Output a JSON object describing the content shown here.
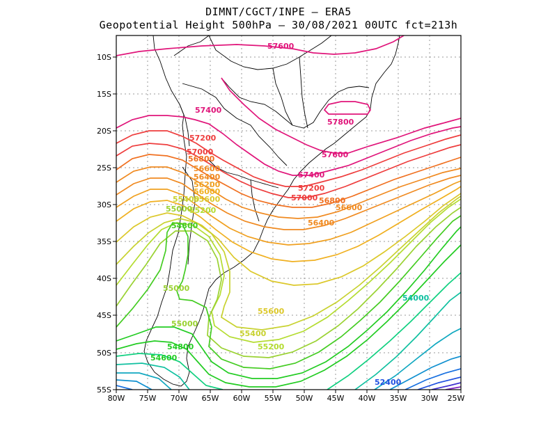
{
  "header": {
    "line1": "DIMNT/CGCT/INPE  —   ERA5",
    "line2": "Geopotential Height 500hPa —   30/08/2021 00UTC fct=213h"
  },
  "axes": {
    "lat_labels": [
      "10S",
      "15S",
      "20S",
      "25S",
      "30S",
      "35S",
      "40S",
      "45S",
      "50S",
      "55S"
    ],
    "lon_labels": [
      "80W",
      "75W",
      "70W",
      "65W",
      "60W",
      "55W",
      "50W",
      "45W",
      "40W",
      "35W",
      "30W",
      "25W"
    ]
  },
  "contour_labels": [
    {
      "text": "57600",
      "color": "#e0157a"
    },
    {
      "text": "57800",
      "color": "#e0157a"
    },
    {
      "text": "57400",
      "color": "#e0157a"
    },
    {
      "text": "57600",
      "color": "#e0157a"
    },
    {
      "text": "57400",
      "color": "#e0157a"
    },
    {
      "text": "57200",
      "color": "#ee3d3d"
    },
    {
      "text": "57000",
      "color": "#ee3d3d"
    },
    {
      "text": "56800",
      "color": "#f07020"
    },
    {
      "text": "56600",
      "color": "#f08a20"
    },
    {
      "text": "56400",
      "color": "#f08a20"
    },
    {
      "text": "56200",
      "color": "#f0a020"
    },
    {
      "text": "56000",
      "color": "#f0b020"
    },
    {
      "text": "55600",
      "color": "#dcc82a"
    },
    {
      "text": "55400",
      "color": "#c8d230"
    },
    {
      "text": "55200",
      "color": "#b4dc30"
    },
    {
      "text": "55000",
      "color": "#9ad232"
    },
    {
      "text": "54800",
      "color": "#44cc22"
    },
    {
      "text": "57200",
      "color": "#ee3d3d"
    },
    {
      "text": "57000",
      "color": "#ee3d3d"
    },
    {
      "text": "56800",
      "color": "#f07020"
    },
    {
      "text": "56600",
      "color": "#f08a20"
    },
    {
      "text": "56400",
      "color": "#f08a20"
    },
    {
      "text": "55600",
      "color": "#dcc82a"
    },
    {
      "text": "55400",
      "color": "#c8d230"
    },
    {
      "text": "55200",
      "color": "#b4dc30"
    },
    {
      "text": "55000",
      "color": "#9ad232"
    },
    {
      "text": "55000",
      "color": "#9ad232"
    },
    {
      "text": "54800",
      "color": "#22cc22"
    },
    {
      "text": "54600",
      "color": "#22cc22"
    },
    {
      "text": "54000",
      "color": "#10c0a0"
    },
    {
      "text": "52400",
      "color": "#2050e0"
    }
  ],
  "colors": {
    "frame": "#000000",
    "grid": "#9a9a9a",
    "coast": "#000000"
  }
}
